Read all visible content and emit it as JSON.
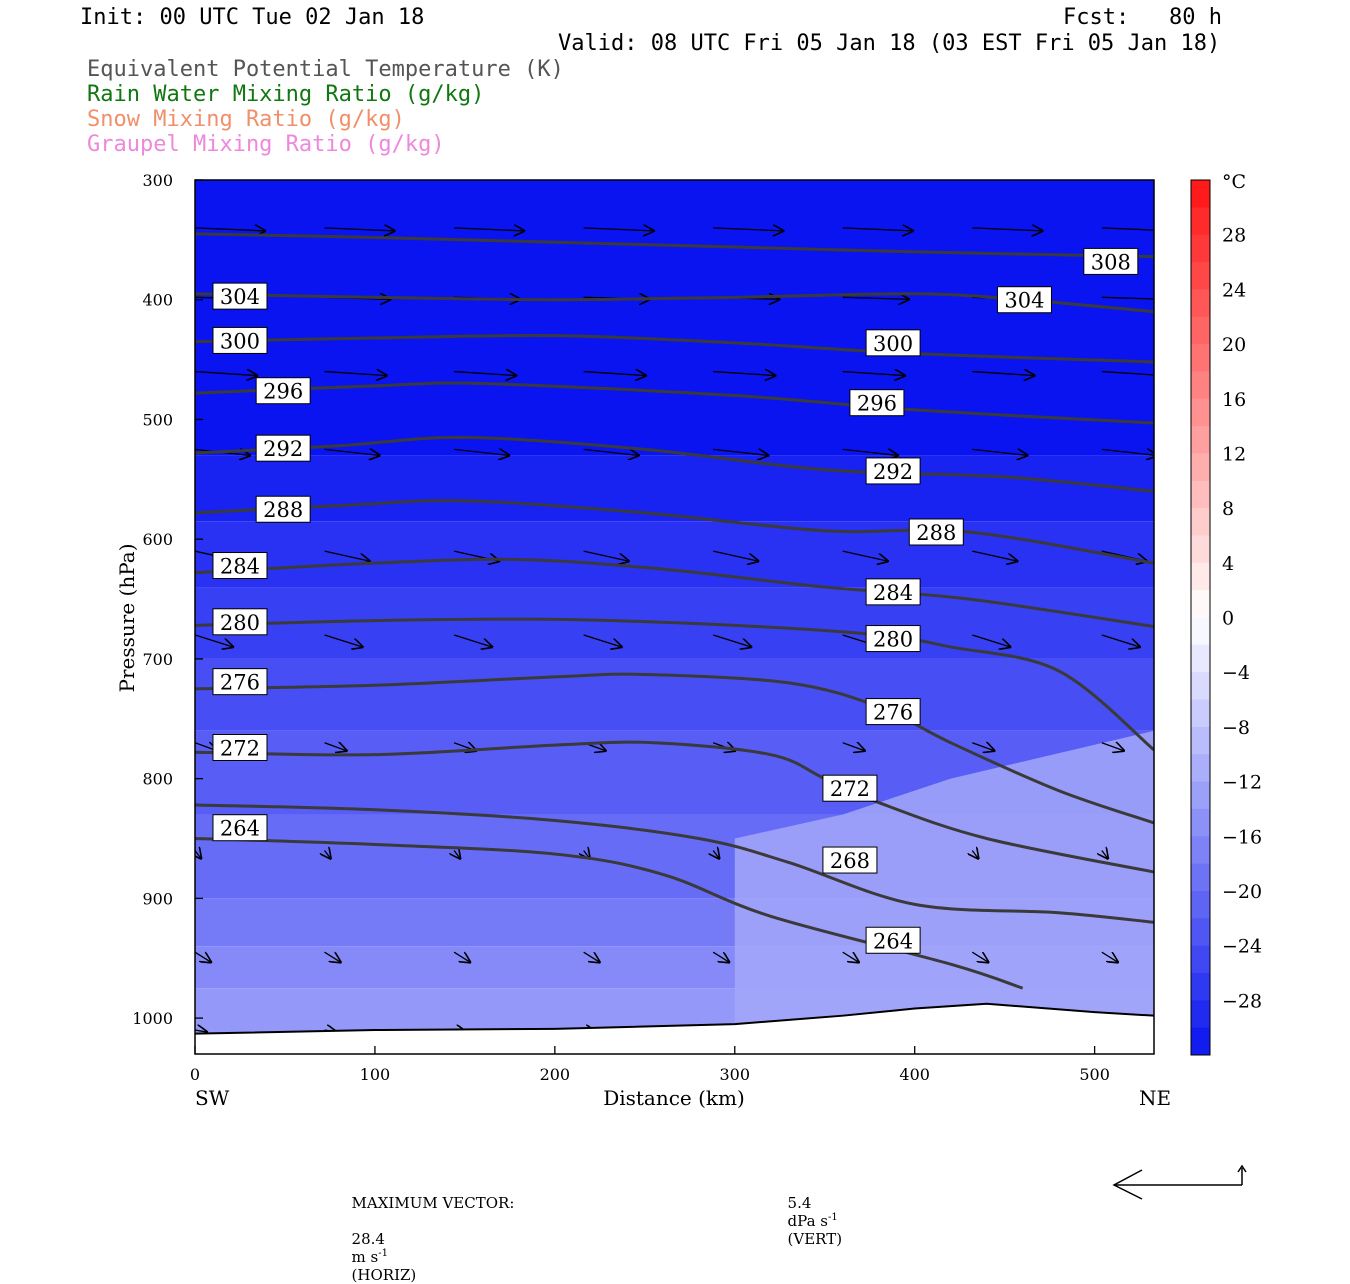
{
  "header": {
    "init": "Init: 00 UTC Tue 02 Jan 18",
    "fcst": "Fcst:   80 h",
    "valid": "Valid: 08 UTC Fri 05 Jan 18 (03 EST Fri 05 Jan 18)"
  },
  "fields": [
    {
      "label": "Equivalent Potential Temperature (K)",
      "color": "#555555"
    },
    {
      "label": "Rain Water Mixing Ratio (g/kg)",
      "color": "#117711"
    },
    {
      "label": "Snow Mixing Ratio (g/kg)",
      "color": "#f0906a"
    },
    {
      "label": "Graupel Mixing Ratio (g/kg)",
      "color": "#ee88dd"
    }
  ],
  "chart_data": {
    "type": "contour",
    "xlabel": "Distance (km)",
    "ylabel": "Pressure (hPa)",
    "xlim": [
      0,
      533
    ],
    "ylim": [
      300,
      1030
    ],
    "x_ticks": [
      0,
      100,
      200,
      300,
      400,
      500
    ],
    "y_ticks": [
      300,
      400,
      500,
      600,
      700,
      800,
      900,
      1000
    ],
    "x_end_labels": {
      "left": "SW",
      "right": "NE"
    },
    "theta_e_contours": [
      {
        "level": 308,
        "points": [
          [
            0,
            345
          ],
          [
            100,
            348
          ],
          [
            200,
            352
          ],
          [
            300,
            356
          ],
          [
            400,
            360
          ],
          [
            533,
            364
          ]
        ]
      },
      {
        "level": 304,
        "points": [
          [
            0,
            395
          ],
          [
            100,
            398
          ],
          [
            200,
            400
          ],
          [
            300,
            398
          ],
          [
            400,
            395
          ],
          [
            460,
            400
          ],
          [
            533,
            410
          ]
        ]
      },
      {
        "level": 300,
        "points": [
          [
            0,
            435
          ],
          [
            100,
            432
          ],
          [
            200,
            430
          ],
          [
            300,
            436
          ],
          [
            400,
            445
          ],
          [
            533,
            452
          ]
        ]
      },
      {
        "level": 296,
        "points": [
          [
            0,
            478
          ],
          [
            100,
            472
          ],
          [
            160,
            470
          ],
          [
            300,
            480
          ],
          [
            400,
            492
          ],
          [
            533,
            503
          ]
        ]
      },
      {
        "level": 292,
        "points": [
          [
            0,
            528
          ],
          [
            80,
            522
          ],
          [
            150,
            515
          ],
          [
            250,
            525
          ],
          [
            350,
            542
          ],
          [
            450,
            548
          ],
          [
            533,
            560
          ]
        ]
      },
      {
        "level": 288,
        "points": [
          [
            0,
            578
          ],
          [
            80,
            572
          ],
          [
            150,
            568
          ],
          [
            250,
            578
          ],
          [
            350,
            593
          ],
          [
            430,
            594
          ],
          [
            533,
            620
          ]
        ]
      },
      {
        "level": 284,
        "points": [
          [
            0,
            628
          ],
          [
            100,
            620
          ],
          [
            180,
            617
          ],
          [
            260,
            625
          ],
          [
            350,
            640
          ],
          [
            430,
            650
          ],
          [
            533,
            673
          ]
        ]
      },
      {
        "level": 280,
        "points": [
          [
            0,
            672
          ],
          [
            100,
            668
          ],
          [
            200,
            667
          ],
          [
            300,
            672
          ],
          [
            380,
            680
          ],
          [
            420,
            690
          ],
          [
            480,
            710
          ],
          [
            533,
            776
          ]
        ]
      },
      {
        "level": 276,
        "points": [
          [
            0,
            725
          ],
          [
            100,
            722
          ],
          [
            200,
            715
          ],
          [
            250,
            713
          ],
          [
            330,
            720
          ],
          [
            380,
            740
          ],
          [
            420,
            770
          ],
          [
            480,
            810
          ],
          [
            533,
            837
          ]
        ]
      },
      {
        "level": 272,
        "points": [
          [
            0,
            778
          ],
          [
            100,
            780
          ],
          [
            200,
            772
          ],
          [
            255,
            770
          ],
          [
            320,
            780
          ],
          [
            350,
            800
          ],
          [
            380,
            820
          ],
          [
            440,
            850
          ],
          [
            533,
            878
          ]
        ]
      },
      {
        "level": 268,
        "points": [
          [
            0,
            822
          ],
          [
            100,
            826
          ],
          [
            200,
            835
          ],
          [
            280,
            850
          ],
          [
            330,
            870
          ],
          [
            400,
            905
          ],
          [
            480,
            912
          ],
          [
            533,
            920
          ]
        ]
      },
      {
        "level": 264,
        "points": [
          [
            0,
            850
          ],
          [
            100,
            855
          ],
          [
            200,
            863
          ],
          [
            260,
            880
          ],
          [
            320,
            915
          ],
          [
            420,
            955
          ],
          [
            460,
            975
          ]
        ]
      }
    ],
    "contour_labels": [
      {
        "text": "308",
        "x": 509,
        "y": 368
      },
      {
        "text": "304",
        "x": 25,
        "y": 397
      },
      {
        "text": "304",
        "x": 461,
        "y": 400
      },
      {
        "text": "300",
        "x": 25,
        "y": 434
      },
      {
        "text": "300",
        "x": 388,
        "y": 436
      },
      {
        "text": "296",
        "x": 49,
        "y": 476
      },
      {
        "text": "296",
        "x": 379,
        "y": 486
      },
      {
        "text": "292",
        "x": 49,
        "y": 524
      },
      {
        "text": "292",
        "x": 388,
        "y": 543
      },
      {
        "text": "288",
        "x": 49,
        "y": 575
      },
      {
        "text": "288",
        "x": 412,
        "y": 594
      },
      {
        "text": "284",
        "x": 25,
        "y": 622
      },
      {
        "text": "284",
        "x": 388,
        "y": 644
      },
      {
        "text": "280",
        "x": 25,
        "y": 669
      },
      {
        "text": "280",
        "x": 388,
        "y": 683
      },
      {
        "text": "276",
        "x": 25,
        "y": 719
      },
      {
        "text": "276",
        "x": 388,
        "y": 744
      },
      {
        "text": "272",
        "x": 25,
        "y": 774
      },
      {
        "text": "272",
        "x": 364,
        "y": 808
      },
      {
        "text": "264",
        "x": 25,
        "y": 841
      },
      {
        "text": "268",
        "x": 364,
        "y": 868
      },
      {
        "text": "264",
        "x": 388,
        "y": 935
      }
    ],
    "terrain_hpa": [
      [
        0,
        1013
      ],
      [
        100,
        1010
      ],
      [
        200,
        1009
      ],
      [
        300,
        1005
      ],
      [
        360,
        998
      ],
      [
        400,
        992
      ],
      [
        440,
        988
      ],
      [
        500,
        995
      ],
      [
        533,
        998
      ]
    ],
    "colorbar": {
      "unit": "°C",
      "tick_labels": [
        "28",
        "24",
        "20",
        "16",
        "12",
        "8",
        "4",
        "0",
        "−4",
        "−8",
        "−12",
        "−16",
        "−20",
        "−24",
        "−28"
      ],
      "tick_values": [
        28,
        24,
        20,
        16,
        12,
        8,
        4,
        0,
        -4,
        -8,
        -12,
        -16,
        -20,
        -24,
        -28
      ],
      "range": [
        -32,
        32
      ]
    },
    "temperature_shading": {
      "bands": [
        {
          "top_hpa": 300,
          "celsius": -32
        },
        {
          "top_hpa": 530,
          "celsius": -30
        },
        {
          "top_hpa": 585,
          "celsius": -28
        },
        {
          "top_hpa": 640,
          "celsius": -26
        },
        {
          "top_hpa": 700,
          "celsius": -24
        },
        {
          "top_hpa": 760,
          "celsius": -22
        },
        {
          "top_hpa": 830,
          "celsius": -20
        },
        {
          "top_hpa": 900,
          "celsius": -18
        },
        {
          "top_hpa": 940,
          "celsius": -16
        },
        {
          "top_hpa": 975,
          "celsius": -14
        }
      ],
      "warm_region_celsius": -12
    },
    "wind_vectors_desc": "Circulation vectors in the cross-section plane",
    "max_vector": {
      "label": "MAXIMUM VECTOR:",
      "horiz_value": "28.4",
      "horiz_unit": "m s",
      "horiz_exp": "-1",
      "horiz_tag": "(HORIZ)",
      "vert_value": "5.4",
      "vert_unit": "dPa s",
      "vert_exp": "-1",
      "vert_tag": "(VERT)"
    }
  }
}
